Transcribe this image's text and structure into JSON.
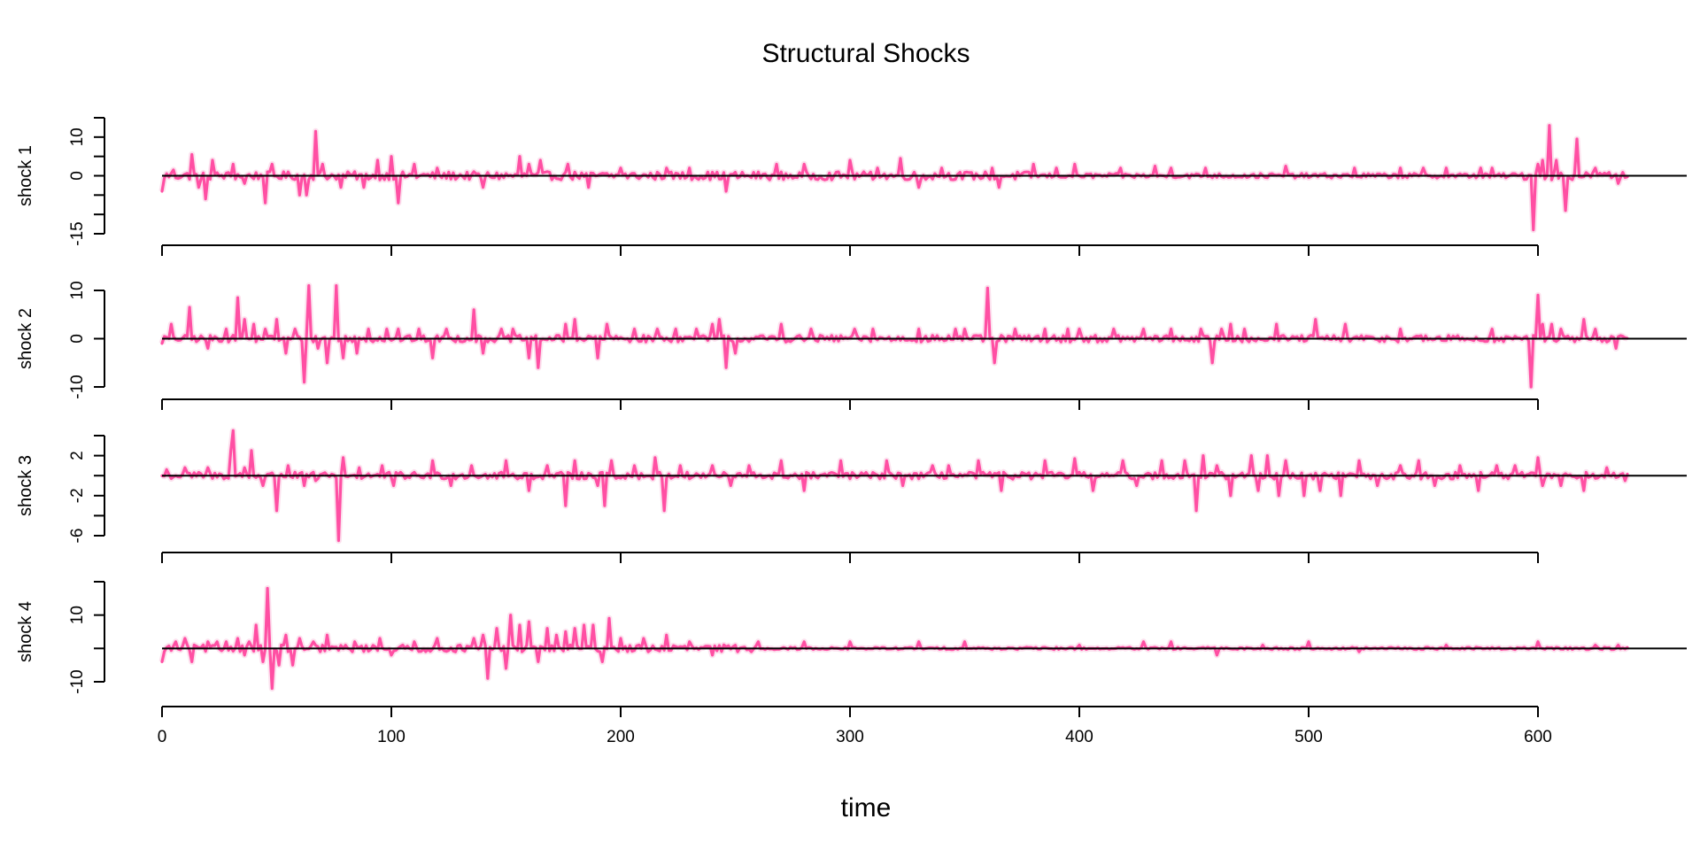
{
  "chart_data": {
    "type": "line",
    "title": "Structural Shocks",
    "xlabel": "time",
    "colors": {
      "series": "#ff4fa3",
      "band": "#f7a8cf",
      "axis": "#000000"
    },
    "x_axis": {
      "ticks": [
        0,
        100,
        200,
        300,
        400,
        500,
        600
      ],
      "tick_labels": [
        "0",
        "100",
        "200",
        "300",
        "400",
        "500",
        "600"
      ],
      "xlim": [
        0,
        640
      ]
    },
    "grid": false,
    "panels": [
      {
        "ylabel": "shock 1",
        "ylim": [
          -15,
          15
        ],
        "yticks": [
          -15,
          -10,
          -5,
          0,
          5,
          10,
          15
        ],
        "ytick_labels": [
          "-15",
          "",
          "",
          "0",
          "",
          "10",
          ""
        ],
        "reference_line": 0,
        "n": 640,
        "spikes": [
          [
            0,
            -4
          ],
          [
            5,
            1.5
          ],
          [
            13,
            5.5
          ],
          [
            16,
            -3
          ],
          [
            19,
            -6
          ],
          [
            22,
            4
          ],
          [
            31,
            3
          ],
          [
            36,
            -2
          ],
          [
            45,
            -7
          ],
          [
            48,
            3
          ],
          [
            60,
            -5
          ],
          [
            63,
            -5
          ],
          [
            67,
            11.5
          ],
          [
            70,
            3
          ],
          [
            78,
            -3
          ],
          [
            88,
            -3
          ],
          [
            94,
            4
          ],
          [
            100,
            5
          ],
          [
            103,
            -7
          ],
          [
            110,
            3
          ],
          [
            120,
            2
          ],
          [
            140,
            -3
          ],
          [
            156,
            5
          ],
          [
            160,
            3
          ],
          [
            165,
            4
          ],
          [
            177,
            3
          ],
          [
            186,
            -3
          ],
          [
            200,
            2
          ],
          [
            220,
            2
          ],
          [
            230,
            2
          ],
          [
            246,
            -4
          ],
          [
            268,
            3
          ],
          [
            280,
            3
          ],
          [
            300,
            4
          ],
          [
            312,
            2
          ],
          [
            322,
            4.5
          ],
          [
            330,
            -3
          ],
          [
            340,
            2
          ],
          [
            362,
            2
          ],
          [
            365,
            -3
          ],
          [
            380,
            3
          ],
          [
            390,
            2
          ],
          [
            398,
            3
          ],
          [
            418,
            2
          ],
          [
            433,
            2.5
          ],
          [
            440,
            2
          ],
          [
            455,
            2
          ],
          [
            490,
            2.5
          ],
          [
            520,
            2
          ],
          [
            540,
            2
          ],
          [
            550,
            2
          ],
          [
            560,
            2
          ],
          [
            575,
            2
          ],
          [
            580,
            2
          ],
          [
            598,
            -14
          ],
          [
            600,
            3
          ],
          [
            602,
            4
          ],
          [
            605,
            13
          ],
          [
            608,
            4
          ],
          [
            612,
            -9
          ],
          [
            617,
            9.5
          ],
          [
            625,
            2
          ],
          [
            635,
            -2
          ]
        ]
      },
      {
        "ylabel": "shock 2",
        "ylim": [
          -10,
          10
        ],
        "yticks": [
          -10,
          0,
          10
        ],
        "ytick_labels": [
          "-10",
          "0",
          "10"
        ],
        "reference_line": 0,
        "n": 640,
        "spikes": [
          [
            0,
            -1
          ],
          [
            4,
            3
          ],
          [
            12,
            6.5
          ],
          [
            20,
            -2
          ],
          [
            28,
            2
          ],
          [
            33,
            8.5
          ],
          [
            36,
            4
          ],
          [
            40,
            3
          ],
          [
            45,
            2
          ],
          [
            50,
            4
          ],
          [
            54,
            -3
          ],
          [
            58,
            2
          ],
          [
            62,
            -9
          ],
          [
            64,
            11
          ],
          [
            68,
            -2
          ],
          [
            72,
            -5
          ],
          [
            76,
            11
          ],
          [
            79,
            -4
          ],
          [
            85,
            -3
          ],
          [
            90,
            2
          ],
          [
            98,
            2
          ],
          [
            103,
            2
          ],
          [
            112,
            2
          ],
          [
            118,
            -4
          ],
          [
            124,
            2
          ],
          [
            136,
            6
          ],
          [
            140,
            -3
          ],
          [
            148,
            2
          ],
          [
            153,
            2
          ],
          [
            160,
            -4
          ],
          [
            164,
            -6
          ],
          [
            176,
            3
          ],
          [
            180,
            4
          ],
          [
            190,
            -4
          ],
          [
            194,
            3
          ],
          [
            206,
            2
          ],
          [
            216,
            2
          ],
          [
            224,
            2
          ],
          [
            233,
            2
          ],
          [
            240,
            3
          ],
          [
            243,
            4
          ],
          [
            246,
            -6
          ],
          [
            250,
            -3
          ],
          [
            270,
            3
          ],
          [
            283,
            2
          ],
          [
            302,
            2
          ],
          [
            310,
            2
          ],
          [
            330,
            2
          ],
          [
            346,
            2
          ],
          [
            350,
            2
          ],
          [
            360,
            10.5
          ],
          [
            363,
            -5
          ],
          [
            372,
            2
          ],
          [
            385,
            2
          ],
          [
            395,
            2
          ],
          [
            400,
            2
          ],
          [
            415,
            2
          ],
          [
            428,
            2
          ],
          [
            440,
            2
          ],
          [
            453,
            2
          ],
          [
            458,
            -5
          ],
          [
            462,
            2
          ],
          [
            466,
            3
          ],
          [
            472,
            2
          ],
          [
            486,
            3
          ],
          [
            503,
            4
          ],
          [
            516,
            3
          ],
          [
            540,
            2
          ],
          [
            580,
            2
          ],
          [
            597,
            -10
          ],
          [
            600,
            9
          ],
          [
            602,
            3
          ],
          [
            606,
            3
          ],
          [
            610,
            2
          ],
          [
            620,
            4
          ],
          [
            625,
            2
          ],
          [
            634,
            -2
          ]
        ]
      },
      {
        "ylabel": "shock 3",
        "ylim": [
          -6,
          4
        ],
        "yticks": [
          -6,
          -4,
          -2,
          0,
          2,
          4
        ],
        "ytick_labels": [
          "-6",
          "",
          "-2",
          "",
          "2",
          ""
        ],
        "reference_line": 0,
        "n": 640,
        "spikes": [
          [
            2,
            0.6
          ],
          [
            10,
            0.8
          ],
          [
            20,
            0.8
          ],
          [
            30,
            2.5
          ],
          [
            31,
            4.5
          ],
          [
            36,
            0.8
          ],
          [
            39,
            2.5
          ],
          [
            44,
            -1
          ],
          [
            50,
            -3.5
          ],
          [
            55,
            1
          ],
          [
            62,
            -1
          ],
          [
            67,
            -0.5
          ],
          [
            77,
            -6.5
          ],
          [
            79,
            1.8
          ],
          [
            86,
            0.8
          ],
          [
            96,
            1
          ],
          [
            101,
            -1
          ],
          [
            118,
            1.5
          ],
          [
            126,
            -1
          ],
          [
            135,
            1
          ],
          [
            150,
            1.5
          ],
          [
            160,
            -1.5
          ],
          [
            168,
            1
          ],
          [
            176,
            -3
          ],
          [
            180,
            1.5
          ],
          [
            190,
            -1
          ],
          [
            193,
            -3
          ],
          [
            196,
            1.5
          ],
          [
            206,
            1
          ],
          [
            215,
            1.8
          ],
          [
            219,
            -3.5
          ],
          [
            226,
            1
          ],
          [
            240,
            1
          ],
          [
            248,
            -1
          ],
          [
            256,
            1
          ],
          [
            270,
            1.5
          ],
          [
            280,
            -1.5
          ],
          [
            296,
            1.5
          ],
          [
            316,
            1.5
          ],
          [
            323,
            -1
          ],
          [
            336,
            1
          ],
          [
            343,
            1
          ],
          [
            356,
            1.5
          ],
          [
            366,
            -1.5
          ],
          [
            385,
            1.5
          ],
          [
            398,
            1.7
          ],
          [
            406,
            -1.5
          ],
          [
            419,
            1.5
          ],
          [
            425,
            -1
          ],
          [
            436,
            1.5
          ],
          [
            446,
            1.5
          ],
          [
            451,
            -3.5
          ],
          [
            454,
            2
          ],
          [
            460,
            1
          ],
          [
            466,
            -2
          ],
          [
            475,
            2
          ],
          [
            478,
            -1.5
          ],
          [
            482,
            2
          ],
          [
            487,
            -2
          ],
          [
            490,
            1.5
          ],
          [
            498,
            -2
          ],
          [
            505,
            -1.5
          ],
          [
            514,
            -2
          ],
          [
            522,
            1.5
          ],
          [
            530,
            -1
          ],
          [
            540,
            1
          ],
          [
            548,
            1.5
          ],
          [
            555,
            -1
          ],
          [
            566,
            1
          ],
          [
            574,
            -1.5
          ],
          [
            582,
            1
          ],
          [
            590,
            1
          ],
          [
            600,
            1.8
          ],
          [
            602,
            -1
          ],
          [
            610,
            -1
          ],
          [
            620,
            -1.5
          ],
          [
            630,
            0.8
          ],
          [
            638,
            -0.5
          ]
        ]
      },
      {
        "ylabel": "shock 4",
        "ylim": [
          -10,
          20
        ],
        "yticks": [
          -10,
          0,
          10,
          20
        ],
        "ytick_labels": [
          "-10",
          "",
          "10",
          ""
        ],
        "reference_line": 0,
        "n": 640,
        "spikes": [
          [
            0,
            -4
          ],
          [
            6,
            2
          ],
          [
            10,
            3
          ],
          [
            13,
            -4
          ],
          [
            20,
            2
          ],
          [
            24,
            2
          ],
          [
            28,
            2
          ],
          [
            33,
            3
          ],
          [
            36,
            -2
          ],
          [
            38,
            2
          ],
          [
            41,
            7
          ],
          [
            44,
            -4
          ],
          [
            46,
            18
          ],
          [
            48,
            -12
          ],
          [
            51,
            -5
          ],
          [
            54,
            4
          ],
          [
            57,
            -5
          ],
          [
            60,
            3
          ],
          [
            66,
            2
          ],
          [
            72,
            4
          ],
          [
            84,
            2
          ],
          [
            95,
            3
          ],
          [
            100,
            -2
          ],
          [
            110,
            2
          ],
          [
            120,
            3
          ],
          [
            136,
            3
          ],
          [
            140,
            4
          ],
          [
            142,
            -9
          ],
          [
            146,
            6
          ],
          [
            150,
            -6
          ],
          [
            152,
            10
          ],
          [
            156,
            7
          ],
          [
            160,
            8
          ],
          [
            164,
            -4
          ],
          [
            168,
            6
          ],
          [
            172,
            4
          ],
          [
            176,
            5
          ],
          [
            180,
            6
          ],
          [
            184,
            7
          ],
          [
            188,
            7
          ],
          [
            192,
            -4
          ],
          [
            195,
            9
          ],
          [
            200,
            3
          ],
          [
            210,
            3
          ],
          [
            220,
            4
          ],
          [
            230,
            2
          ],
          [
            240,
            -2
          ],
          [
            260,
            2
          ],
          [
            280,
            2
          ],
          [
            300,
            2
          ],
          [
            330,
            2
          ],
          [
            350,
            2
          ],
          [
            400,
            1
          ],
          [
            428,
            2
          ],
          [
            440,
            2
          ],
          [
            460,
            -2
          ],
          [
            480,
            1
          ],
          [
            500,
            2
          ],
          [
            522,
            -1
          ],
          [
            560,
            1
          ],
          [
            600,
            2
          ],
          [
            625,
            1
          ],
          [
            635,
            1
          ]
        ]
      }
    ]
  }
}
